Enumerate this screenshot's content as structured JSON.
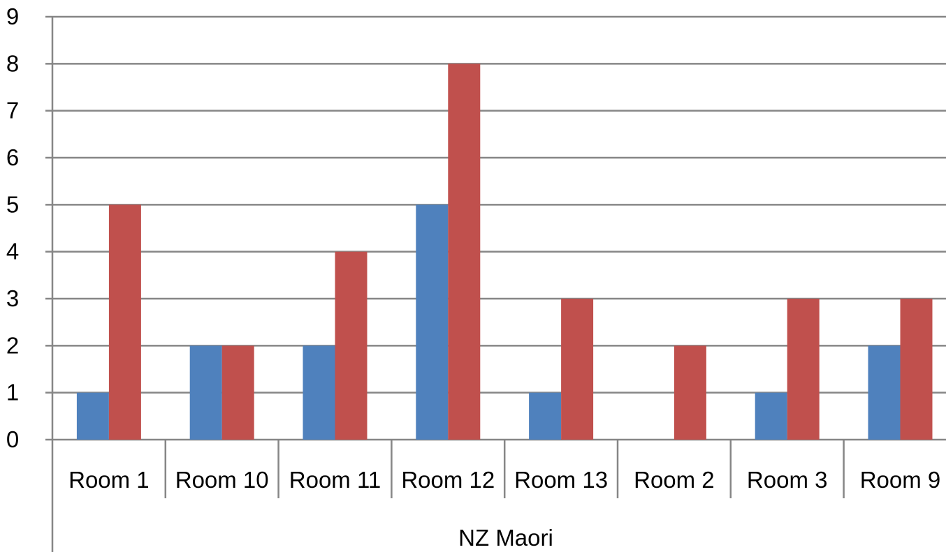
{
  "chart_data": {
    "type": "bar",
    "categories": [
      "Room 1",
      "Room 10",
      "Room 11",
      "Room 12",
      "Room 13",
      "Room 2",
      "Room 3",
      "Room 9"
    ],
    "group_label": "NZ Maori",
    "series": [
      {
        "values": [
          1,
          2,
          2,
          5,
          1,
          0,
          1,
          2
        ],
        "color": "#4f81bd"
      },
      {
        "values": [
          5,
          2,
          4,
          8,
          3,
          2,
          3,
          3
        ],
        "color": "#c0504d"
      }
    ],
    "ylim": [
      0,
      9
    ],
    "yticks": [
      "0",
      "1",
      "2",
      "3",
      "4",
      "5",
      "6",
      "7",
      "8",
      "9"
    ],
    "grid": true,
    "gridline_color": "#868686",
    "title": "",
    "xlabel": "",
    "ylabel": ""
  }
}
